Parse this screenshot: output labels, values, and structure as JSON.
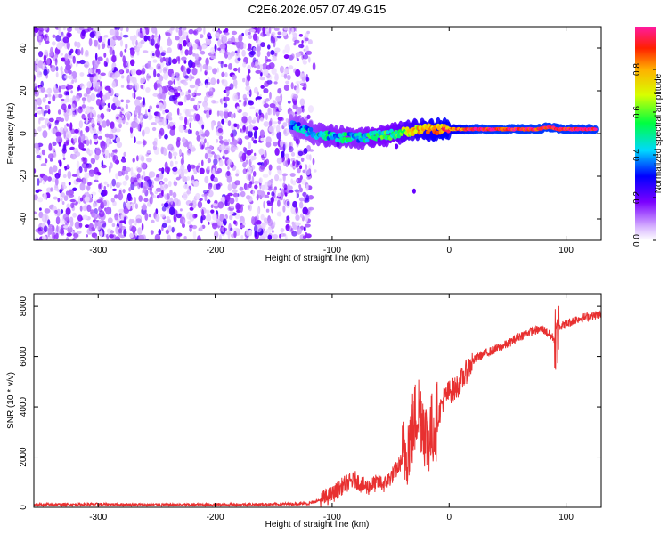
{
  "figure_title": "C2E6.2026.057.07.49.G15",
  "chart_data": [
    {
      "type": "heatmap",
      "title": "C2E6.2026.057.07.49.G15",
      "xlabel": "Height of straight line (km)",
      "ylabel": "Frequency (Hz)",
      "xlim": [
        -355,
        130
      ],
      "ylim": [
        -50,
        50
      ],
      "xticks": [
        -300,
        -200,
        -100,
        0,
        100
      ],
      "yticks": [
        -40,
        -20,
        0,
        20,
        40
      ],
      "noise_region_km": [
        -355,
        -118
      ],
      "signal_trace": {
        "x": [
          -135,
          -125,
          -115,
          -105,
          -95,
          -85,
          -75,
          -65,
          -55,
          -45,
          -35,
          -25,
          -15,
          -5,
          5,
          15,
          25,
          35,
          45,
          55,
          65,
          75,
          85,
          95,
          105,
          115,
          125
        ],
        "freq_hz": [
          4,
          2,
          0,
          -1,
          -2,
          -2,
          -2,
          -1,
          -1,
          0,
          1,
          2,
          2,
          2,
          2,
          2,
          2,
          2,
          2,
          2,
          2,
          2,
          3,
          2,
          2,
          2,
          2
        ],
        "amplitude": [
          0.35,
          0.4,
          0.4,
          0.45,
          0.45,
          0.45,
          0.45,
          0.5,
          0.5,
          0.55,
          0.65,
          0.75,
          0.8,
          0.85,
          0.85,
          0.9,
          0.95,
          0.95,
          0.95,
          0.95,
          0.95,
          0.95,
          0.95,
          0.95,
          0.95,
          0.95,
          0.95
        ]
      },
      "colorbar": {
        "label": "Normalized spectral amplitude",
        "range": [
          0,
          1
        ],
        "ticks": [
          "0.0",
          "0.2",
          "0.4",
          "0.6",
          "0.8"
        ]
      }
    },
    {
      "type": "line",
      "xlabel": "Height of straight line (km)",
      "ylabel": "SNR (10 * v/v)",
      "xlim": [
        -355,
        130
      ],
      "ylim": [
        0,
        8500
      ],
      "xticks": [
        -300,
        -200,
        -100,
        0,
        100
      ],
      "yticks": [
        0,
        2000,
        4000,
        6000,
        8000
      ],
      "color": "#e83030",
      "series": [
        {
          "name": "SNR",
          "x": [
            -355,
            -300,
            -250,
            -200,
            -150,
            -120,
            -110,
            -100,
            -95,
            -90,
            -85,
            -80,
            -75,
            -70,
            -65,
            -60,
            -55,
            -50,
            -45,
            -40,
            -35,
            -30,
            -27,
            -25,
            -22,
            -20,
            -15,
            -10,
            -5,
            0,
            5,
            10,
            15,
            20,
            25,
            30,
            40,
            50,
            60,
            70,
            80,
            90,
            93,
            95,
            100,
            110,
            120,
            130
          ],
          "y": [
            100,
            120,
            100,
            110,
            120,
            150,
            300,
            500,
            700,
            900,
            1000,
            1100,
            900,
            800,
            900,
            1000,
            900,
            1200,
            1500,
            1900,
            2500,
            3300,
            4000,
            3800,
            3500,
            2800,
            3000,
            3500,
            4300,
            4600,
            4700,
            5000,
            5400,
            5800,
            6000,
            6100,
            6300,
            6500,
            6800,
            7000,
            7100,
            6700,
            7500,
            7200,
            7300,
            7500,
            7600,
            7700
          ]
        }
      ]
    }
  ]
}
